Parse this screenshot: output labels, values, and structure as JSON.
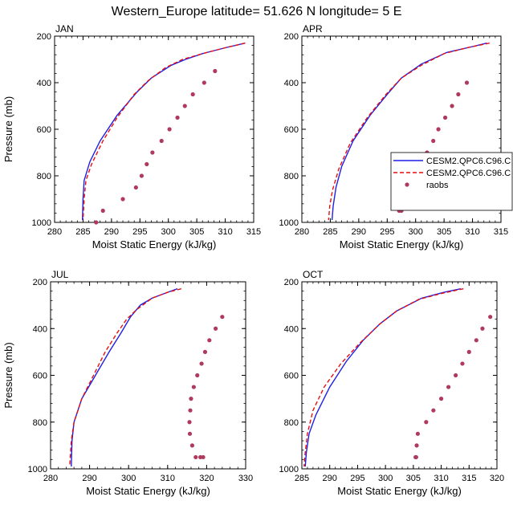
{
  "title": "Western_Europe  latitude= 51.626 N longitude= 5 E",
  "colors": {
    "model1": "#1f1fe6",
    "model2": "#e60f0f",
    "obs": "#b03a5e"
  },
  "legend": {
    "entries": [
      {
        "label": "CESM2.QPC6.C96.C",
        "style": "solid"
      },
      {
        "label": "CESM2.QPC6.C96.C",
        "style": "dashed"
      },
      {
        "label": "raobs",
        "style": "dot"
      }
    ]
  },
  "chart_data": [
    {
      "type": "line",
      "title": "JAN",
      "xlabel": "Moist Static Energy (kJ/kg)",
      "ylabel": "Pressure (mb)",
      "xlim": [
        280,
        315
      ],
      "ylim": [
        1000,
        200
      ],
      "xticks": [
        280,
        285,
        290,
        295,
        300,
        305,
        310,
        315
      ],
      "yticks": [
        200,
        400,
        600,
        800,
        1000
      ],
      "series": [
        {
          "name": "CESM2.QPC6.C96.C (solid)",
          "style": "solid",
          "x": [
            313.5,
            310,
            306,
            303,
            300.5,
            297,
            294.5,
            291,
            288,
            286.2,
            285.2,
            285.0,
            284.9
          ],
          "y": [
            230,
            250,
            275,
            300,
            325,
            380,
            440,
            540,
            650,
            740,
            820,
            900,
            990
          ]
        },
        {
          "name": "CESM2.QPC6.C96.C (dashed)",
          "style": "dashed",
          "x": [
            313.5,
            310,
            306,
            302.5,
            299.5,
            296.5,
            294,
            291,
            288.5,
            286.5,
            285.5,
            285.2,
            285.0
          ],
          "y": [
            230,
            250,
            275,
            300,
            335,
            390,
            450,
            550,
            650,
            750,
            820,
            900,
            990
          ]
        },
        {
          "name": "raobs",
          "style": "dot",
          "x": [
            308.2,
            306.3,
            304.3,
            302.9,
            301.6,
            300.2,
            298.8,
            297.2,
            296.2,
            295.3,
            294.3,
            292.0,
            288.5,
            287.3
          ],
          "y": [
            350,
            400,
            450,
            500,
            550,
            600,
            650,
            700,
            750,
            800,
            850,
            900,
            950,
            1000
          ]
        }
      ]
    },
    {
      "type": "line",
      "title": "APR",
      "xlabel": "Moist Static Energy (kJ/kg)",
      "ylabel": "",
      "xlim": [
        280,
        315
      ],
      "ylim": [
        1000,
        200
      ],
      "xticks": [
        280,
        285,
        290,
        295,
        300,
        305,
        310,
        315
      ],
      "yticks": [
        200,
        400,
        600,
        800,
        1000
      ],
      "series": [
        {
          "name": "CESM2.QPC6.C96.C (solid)",
          "style": "solid",
          "x": [
            312.5,
            310,
            305.5,
            301,
            297.5,
            295,
            292,
            289,
            287,
            286,
            285.5,
            285.3
          ],
          "y": [
            230,
            245,
            270,
            320,
            380,
            450,
            540,
            650,
            760,
            850,
            930,
            990
          ]
        },
        {
          "name": "CESM2.QPC6.C96.C (dashed)",
          "style": "dashed",
          "x": [
            313,
            309,
            305,
            301,
            297.5,
            294.8,
            291.5,
            288.5,
            286.5,
            285.4,
            284.9,
            284.7
          ],
          "y": [
            230,
            250,
            275,
            325,
            380,
            450,
            550,
            660,
            770,
            860,
            930,
            990
          ]
        },
        {
          "name": "raobs",
          "style": "dot",
          "x": [
            309.0,
            307.5,
            306.4,
            305.2,
            304.0,
            303.1,
            302.0,
            301.0,
            300.3,
            298.8,
            298.1,
            297.9,
            297.5,
            297.1
          ],
          "y": [
            400,
            450,
            500,
            550,
            600,
            650,
            700,
            750,
            800,
            830,
            850,
            900,
            950,
            950
          ]
        }
      ]
    },
    {
      "type": "line",
      "title": "JUL",
      "xlabel": "Moist Static Energy (kJ/kg)",
      "ylabel": "Pressure (mb)",
      "xlim": [
        280,
        330
      ],
      "ylim": [
        1000,
        200
      ],
      "xticks": [
        280,
        290,
        300,
        310,
        320,
        330
      ],
      "yticks": [
        200,
        400,
        600,
        800,
        1000
      ],
      "series": [
        {
          "name": "CESM2.QPC6.C96.C (solid)",
          "style": "solid",
          "x": [
            312.5,
            310,
            306,
            303,
            300.5,
            298,
            295,
            291.5,
            288,
            286,
            285.5,
            285.3
          ],
          "y": [
            230,
            245,
            270,
            300,
            350,
            420,
            500,
            600,
            700,
            800,
            880,
            990
          ]
        },
        {
          "name": "CESM2.QPC6.C96.C (dashed)",
          "style": "dashed",
          "x": [
            313.5,
            310,
            306,
            302,
            299.5,
            297,
            294,
            291,
            288,
            286,
            285.3,
            284.9
          ],
          "y": [
            230,
            245,
            270,
            320,
            360,
            420,
            500,
            600,
            700,
            800,
            880,
            990
          ]
        },
        {
          "name": "raobs",
          "style": "dot",
          "x": [
            324.0,
            322.3,
            320.7,
            319.6,
            318.7,
            317.6,
            316.7,
            316.0,
            315.8,
            315.6,
            315.7,
            316.3,
            317.2,
            318.4,
            319.1
          ],
          "y": [
            350,
            400,
            450,
            500,
            550,
            600,
            650,
            700,
            750,
            800,
            850,
            900,
            950,
            950,
            950
          ]
        }
      ]
    },
    {
      "type": "line",
      "title": "OCT",
      "xlabel": "Moist Static Energy (kJ/kg)",
      "ylabel": "",
      "xlim": [
        285,
        320
      ],
      "ylim": [
        1000,
        200
      ],
      "xticks": [
        285,
        290,
        295,
        300,
        305,
        310,
        315,
        320
      ],
      "yticks": [
        200,
        400,
        600,
        800,
        1000
      ],
      "series": [
        {
          "name": "CESM2.QPC6.C96.C (solid)",
          "style": "solid",
          "x": [
            313.5,
            310.5,
            306.5,
            302,
            299,
            296,
            293,
            290,
            287.5,
            286.3,
            285.8,
            285.6
          ],
          "y": [
            230,
            245,
            270,
            325,
            380,
            450,
            540,
            650,
            770,
            850,
            930,
            990
          ]
        },
        {
          "name": "CESM2.QPC6.C96.C (dashed)",
          "style": "dashed",
          "x": [
            314,
            310,
            306,
            302,
            299,
            295.5,
            292,
            289,
            287,
            286,
            285.6,
            285.4
          ],
          "y": [
            230,
            250,
            275,
            325,
            380,
            460,
            550,
            650,
            750,
            850,
            930,
            990
          ]
        },
        {
          "name": "raobs",
          "style": "dot",
          "x": [
            318.8,
            317.4,
            316.3,
            315.0,
            313.8,
            312.6,
            311.3,
            310.0,
            308.6,
            307.3,
            305.8,
            305.6,
            305.5,
            305.4
          ],
          "y": [
            350,
            400,
            450,
            500,
            550,
            600,
            650,
            700,
            750,
            800,
            850,
            900,
            950,
            950
          ]
        }
      ]
    }
  ]
}
